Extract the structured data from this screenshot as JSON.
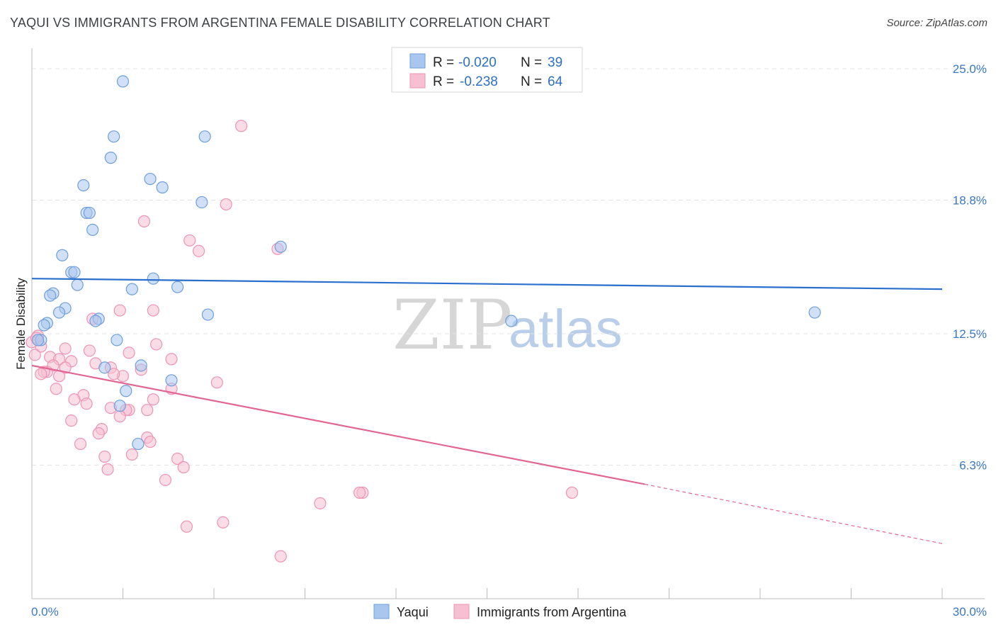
{
  "title": "YAQUI VS IMMIGRANTS FROM ARGENTINA FEMALE DISABILITY CORRELATION CHART",
  "source": "Source: ZipAtlas.com",
  "watermark": {
    "zip": "ZIP",
    "atlas": "atlas"
  },
  "colors": {
    "yaqui_fill": "#a9c7ee",
    "yaqui_stroke": "#6f9fdb",
    "yaqui_line": "#2b6fcd",
    "arg_fill": "#f6bfd2",
    "arg_stroke": "#ee94b4",
    "arg_line": "#e36592",
    "grid": "#e3e3e3",
    "axis_label": "#3a78c8"
  },
  "legend": {
    "rows": [
      {
        "r_label": "R =",
        "r_value": "-0.020",
        "n_label": "N =",
        "n_value": "39"
      },
      {
        "r_label": "R =",
        "r_value": "-0.238",
        "n_label": "N =",
        "n_value": "64"
      }
    ]
  },
  "bottom_legend": {
    "items": [
      "Yaqui",
      "Immigrants from Argentina"
    ]
  },
  "chart_data": {
    "type": "scatter",
    "title": "YAQUI VS IMMIGRANTS FROM ARGENTINA FEMALE DISABILITY CORRELATION CHART",
    "xlabel": "",
    "ylabel": "Female Disability",
    "xlim": [
      0,
      30
    ],
    "ylim": [
      0,
      25.6
    ],
    "x_tick_labels": [
      "0.0%",
      "30.0%"
    ],
    "y_ticks": [
      6.3,
      12.5,
      18.8,
      25.0
    ],
    "y_tick_labels": [
      "6.3%",
      "12.5%",
      "18.8%",
      "25.0%"
    ],
    "series": [
      {
        "name": "Yaqui",
        "R": -0.02,
        "N": 39,
        "trend": {
          "x0": 0,
          "y0": 15.1,
          "x1": 30,
          "y1": 14.6
        },
        "points": [
          [
            3.0,
            24.4
          ],
          [
            2.7,
            21.8
          ],
          [
            5.7,
            21.8
          ],
          [
            2.6,
            20.8
          ],
          [
            1.7,
            19.5
          ],
          [
            3.9,
            19.8
          ],
          [
            4.3,
            19.4
          ],
          [
            5.6,
            18.7
          ],
          [
            1.8,
            18.2
          ],
          [
            1.9,
            18.2
          ],
          [
            2.0,
            17.4
          ],
          [
            8.2,
            16.6
          ],
          [
            1.0,
            16.2
          ],
          [
            1.3,
            15.4
          ],
          [
            1.4,
            15.4
          ],
          [
            4.0,
            15.1
          ],
          [
            1.5,
            14.8
          ],
          [
            4.8,
            14.7
          ],
          [
            3.3,
            14.6
          ],
          [
            0.7,
            14.4
          ],
          [
            0.6,
            14.3
          ],
          [
            1.1,
            13.7
          ],
          [
            0.9,
            13.5
          ],
          [
            5.8,
            13.4
          ],
          [
            2.2,
            13.2
          ],
          [
            2.1,
            13.1
          ],
          [
            15.8,
            13.1
          ],
          [
            25.8,
            13.5
          ],
          [
            0.5,
            13.0
          ],
          [
            0.4,
            12.9
          ],
          [
            2.8,
            12.2
          ],
          [
            0.3,
            12.2
          ],
          [
            0.2,
            12.2
          ],
          [
            3.6,
            11.0
          ],
          [
            2.4,
            10.9
          ],
          [
            4.6,
            10.3
          ],
          [
            3.1,
            9.8
          ],
          [
            2.9,
            9.1
          ],
          [
            3.5,
            7.3
          ]
        ]
      },
      {
        "name": "Immigrants from Argentina",
        "R": -0.238,
        "N": 64,
        "trend": {
          "x0": 0,
          "y0": 11.0,
          "x1": 20.2,
          "y1": 5.4,
          "dash_x1": 30,
          "dash_y1": 2.6
        },
        "points": [
          [
            6.9,
            22.3
          ],
          [
            6.4,
            18.6
          ],
          [
            3.7,
            17.8
          ],
          [
            5.2,
            16.9
          ],
          [
            5.5,
            16.4
          ],
          [
            8.1,
            16.5
          ],
          [
            2.9,
            13.6
          ],
          [
            4.0,
            13.6
          ],
          [
            2.0,
            13.2
          ],
          [
            0.2,
            12.4
          ],
          [
            4.1,
            12.0
          ],
          [
            0.3,
            11.9
          ],
          [
            1.1,
            11.8
          ],
          [
            1.9,
            11.7
          ],
          [
            3.2,
            11.6
          ],
          [
            0.6,
            11.4
          ],
          [
            0.9,
            11.3
          ],
          [
            4.6,
            11.3
          ],
          [
            1.3,
            11.2
          ],
          [
            2.1,
            11.1
          ],
          [
            0.7,
            11.0
          ],
          [
            2.6,
            10.9
          ],
          [
            1.1,
            10.9
          ],
          [
            0.5,
            10.7
          ],
          [
            0.4,
            10.7
          ],
          [
            0.3,
            10.6
          ],
          [
            0.9,
            10.5
          ],
          [
            3.0,
            10.5
          ],
          [
            2.7,
            10.6
          ],
          [
            3.6,
            10.8
          ],
          [
            6.1,
            10.2
          ],
          [
            0.8,
            9.9
          ],
          [
            4.6,
            9.9
          ],
          [
            1.7,
            9.6
          ],
          [
            1.4,
            9.4
          ],
          [
            4.0,
            9.4
          ],
          [
            1.8,
            9.2
          ],
          [
            2.6,
            9.0
          ],
          [
            3.2,
            8.9
          ],
          [
            3.1,
            8.9
          ],
          [
            3.8,
            8.9
          ],
          [
            2.9,
            8.6
          ],
          [
            1.3,
            8.4
          ],
          [
            2.3,
            8.0
          ],
          [
            2.2,
            7.8
          ],
          [
            3.8,
            7.6
          ],
          [
            3.9,
            7.4
          ],
          [
            1.6,
            7.3
          ],
          [
            3.3,
            6.8
          ],
          [
            2.4,
            6.7
          ],
          [
            4.8,
            6.6
          ],
          [
            5.0,
            6.2
          ],
          [
            2.5,
            6.1
          ],
          [
            4.4,
            5.6
          ],
          [
            10.9,
            5.0
          ],
          [
            10.8,
            5.0
          ],
          [
            17.8,
            5.0
          ],
          [
            9.5,
            4.5
          ],
          [
            6.3,
            3.6
          ],
          [
            5.1,
            3.4
          ],
          [
            8.2,
            2.0
          ],
          [
            0.1,
            11.5
          ],
          [
            0.0,
            12.1
          ],
          [
            0.15,
            12.3
          ]
        ]
      }
    ]
  }
}
